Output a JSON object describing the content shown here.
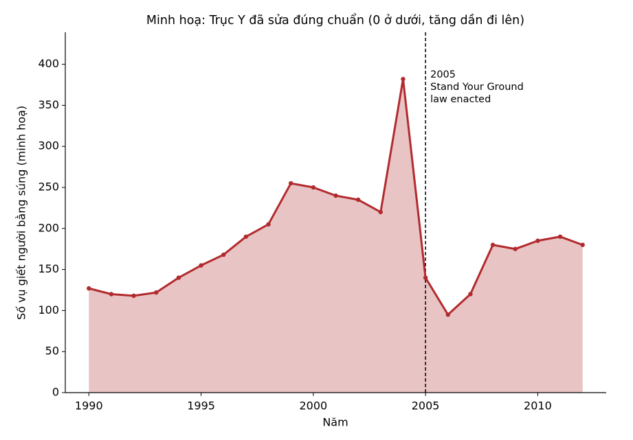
{
  "chart_data": {
    "type": "area-line",
    "title": "Minh hoạ: Trục Y đã sửa đúng chuẩn (0 ở dưới, tăng dần đi lên)",
    "x_label": "Năm",
    "y_label": "Số vụ giết người bằng súng (minh hoạ)",
    "x": [
      1990,
      1991,
      1992,
      1993,
      1994,
      1995,
      1996,
      1997,
      1998,
      1999,
      2000,
      2001,
      2002,
      2003,
      2004,
      2005,
      2006,
      2007,
      2008,
      2009,
      2010,
      2011,
      2012
    ],
    "series": [
      {
        "color": "#b22a2e",
        "fill": "#e8c4c4",
        "values": [
          127,
          120,
          118,
          122,
          140,
          155,
          168,
          190,
          205,
          255,
          250,
          240,
          235,
          220,
          382,
          140,
          95,
          120,
          180,
          175,
          185,
          190,
          180
        ]
      }
    ],
    "xlim": [
      1988.95,
      2013.05
    ],
    "xticks": [
      1990,
      1995,
      2000,
      2005,
      2010
    ],
    "ylim": [
      0,
      439
    ],
    "yticks": [
      0,
      50,
      100,
      150,
      200,
      250,
      300,
      350,
      400
    ],
    "vline": {
      "x": 2005,
      "color": "#000000"
    },
    "annotation": {
      "lines": [
        "2005",
        "Stand Your Ground",
        "law enacted"
      ]
    }
  }
}
